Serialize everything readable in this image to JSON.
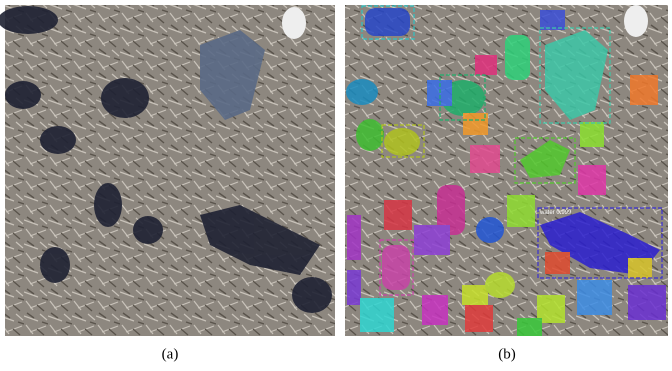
{
  "figure": {
    "panels": [
      {
        "caption": "(a)"
      },
      {
        "caption": "(b)",
        "annotations": [
          "water 0.999"
        ]
      }
    ]
  }
}
